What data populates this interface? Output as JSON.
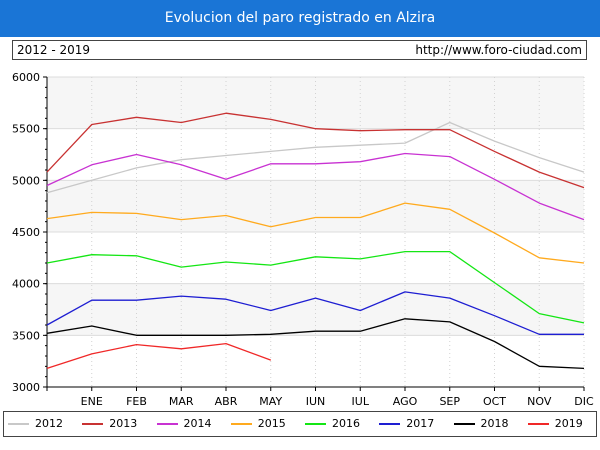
{
  "header": {
    "title": "Evolucion del paro registrado en Alzira",
    "period": "2012 - 2019",
    "url": "http://www.foro-ciudad.com"
  },
  "chart_data": {
    "type": "line",
    "title": "Evolucion del paro registrado en Alzira",
    "xlabel": "",
    "ylabel": "",
    "categories": [
      "",
      "ENE",
      "FEB",
      "MAR",
      "ABR",
      "MAY",
      "JUN",
      "JUL",
      "AGO",
      "SEP",
      "OCT",
      "NOV",
      "DIC"
    ],
    "ylim": [
      3000,
      6000
    ],
    "yticks": [
      3000,
      3500,
      4000,
      4500,
      5000,
      5500,
      6000
    ],
    "grid": true,
    "legend_position": "bottom",
    "series": [
      {
        "name": "2012",
        "color": "#c8c8c8",
        "values": [
          4880,
          5000,
          5120,
          5200,
          5240,
          5280,
          5320,
          5340,
          5360,
          5560,
          5380,
          5220,
          5080
        ]
      },
      {
        "name": "2013",
        "color": "#c83232",
        "values": [
          5080,
          5540,
          5610,
          5560,
          5650,
          5590,
          5500,
          5480,
          5490,
          5490,
          5280,
          5080,
          4930
        ]
      },
      {
        "name": "2014",
        "color": "#c832d2",
        "values": [
          4950,
          5150,
          5250,
          5150,
          5010,
          5160,
          5160,
          5180,
          5260,
          5230,
          5010,
          4780,
          4620
        ]
      },
      {
        "name": "2015",
        "color": "#ffaa1e",
        "values": [
          4630,
          4690,
          4680,
          4620,
          4660,
          4550,
          4640,
          4640,
          4780,
          4720,
          4490,
          4250,
          4200
        ]
      },
      {
        "name": "2016",
        "color": "#14e614",
        "values": [
          4200,
          4280,
          4270,
          4160,
          4210,
          4180,
          4260,
          4240,
          4310,
          4310,
          4010,
          3710,
          3620
        ]
      },
      {
        "name": "2017",
        "color": "#1e1ed2",
        "values": [
          3600,
          3840,
          3840,
          3880,
          3850,
          3740,
          3860,
          3740,
          3920,
          3860,
          3690,
          3510,
          3510
        ]
      },
      {
        "name": "2018",
        "color": "#000000",
        "values": [
          3520,
          3590,
          3500,
          3500,
          3500,
          3510,
          3540,
          3540,
          3660,
          3630,
          3440,
          3200,
          3180
        ]
      },
      {
        "name": "2019",
        "color": "#f02828",
        "values": [
          3180,
          3320,
          3410,
          3370,
          3420,
          3260,
          null,
          null,
          null,
          null,
          null,
          null,
          null
        ]
      }
    ]
  }
}
